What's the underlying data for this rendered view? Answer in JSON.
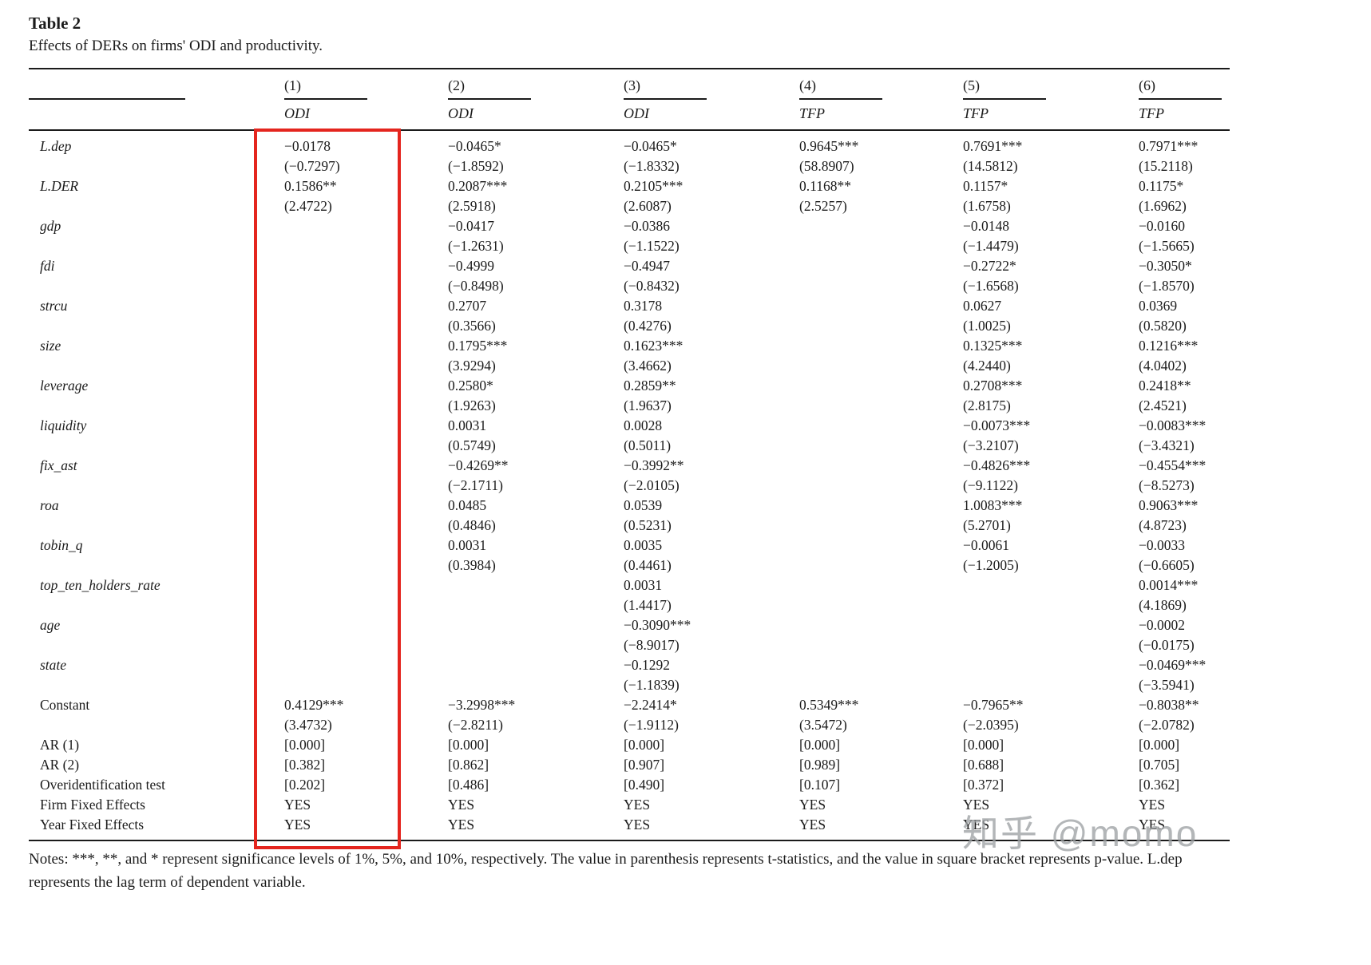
{
  "header": {
    "label": "Table 2",
    "caption": "Effects of DERs on firms' ODI and productivity."
  },
  "table": {
    "col_numbers": [
      "(1)",
      "(2)",
      "(3)",
      "(4)",
      "(5)",
      "(6)"
    ],
    "col_heads": [
      "ODI",
      "ODI",
      "ODI",
      "TFP",
      "TFP",
      "TFP"
    ],
    "var_rows": [
      {
        "label": "L.dep",
        "italic": true,
        "coef": [
          "−0.0178",
          "−0.0465*",
          "−0.0465*",
          "0.9645***",
          "0.7691***",
          "0.7971***"
        ],
        "t": [
          "(−0.7297)",
          "(−1.8592)",
          "(−1.8332)",
          "(58.8907)",
          "(14.5812)",
          "(15.2118)"
        ]
      },
      {
        "label": "L.DER",
        "italic": true,
        "coef": [
          "0.1586**",
          "0.2087***",
          "0.2105***",
          "0.1168**",
          "0.1157*",
          "0.1175*"
        ],
        "t": [
          "(2.4722)",
          "(2.5918)",
          "(2.6087)",
          "(2.5257)",
          "(1.6758)",
          "(1.6962)"
        ]
      },
      {
        "label": "gdp",
        "italic": true,
        "coef": [
          "",
          "−0.0417",
          "−0.0386",
          "",
          "−0.0148",
          "−0.0160"
        ],
        "t": [
          "",
          "(−1.2631)",
          "(−1.1522)",
          "",
          "(−1.4479)",
          "(−1.5665)"
        ]
      },
      {
        "label": "fdi",
        "italic": true,
        "coef": [
          "",
          "−0.4999",
          "−0.4947",
          "",
          "−0.2722*",
          "−0.3050*"
        ],
        "t": [
          "",
          "(−0.8498)",
          "(−0.8432)",
          "",
          "(−1.6568)",
          "(−1.8570)"
        ]
      },
      {
        "label": "strcu",
        "italic": true,
        "coef": [
          "",
          "0.2707",
          "0.3178",
          "",
          "0.0627",
          "0.0369"
        ],
        "t": [
          "",
          "(0.3566)",
          "(0.4276)",
          "",
          "(1.0025)",
          "(0.5820)"
        ]
      },
      {
        "label": "size",
        "italic": true,
        "coef": [
          "",
          "0.1795***",
          "0.1623***",
          "",
          "0.1325***",
          "0.1216***"
        ],
        "t": [
          "",
          "(3.9294)",
          "(3.4662)",
          "",
          "(4.2440)",
          "(4.0402)"
        ]
      },
      {
        "label": "leverage",
        "italic": true,
        "coef": [
          "",
          "0.2580*",
          "0.2859**",
          "",
          "0.2708***",
          "0.2418**"
        ],
        "t": [
          "",
          "(1.9263)",
          "(1.9637)",
          "",
          "(2.8175)",
          "(2.4521)"
        ]
      },
      {
        "label": "liquidity",
        "italic": true,
        "coef": [
          "",
          "0.0031",
          "0.0028",
          "",
          "−0.0073***",
          "−0.0083***"
        ],
        "t": [
          "",
          "(0.5749)",
          "(0.5011)",
          "",
          "(−3.2107)",
          "(−3.4321)"
        ]
      },
      {
        "label": "fix_ast",
        "italic": true,
        "coef": [
          "",
          "−0.4269**",
          "−0.3992**",
          "",
          "−0.4826***",
          "−0.4554***"
        ],
        "t": [
          "",
          "(−2.1711)",
          "(−2.0105)",
          "",
          "(−9.1122)",
          "(−8.5273)"
        ]
      },
      {
        "label": "roa",
        "italic": true,
        "coef": [
          "",
          "0.0485",
          "0.0539",
          "",
          "1.0083***",
          "0.9063***"
        ],
        "t": [
          "",
          "(0.4846)",
          "(0.5231)",
          "",
          "(5.2701)",
          "(4.8723)"
        ]
      },
      {
        "label": "tobin_q",
        "italic": true,
        "coef": [
          "",
          "0.0031",
          "0.0035",
          "",
          "−0.0061",
          "−0.0033"
        ],
        "t": [
          "",
          "(0.3984)",
          "(0.4461)",
          "",
          "(−1.2005)",
          "(−0.6605)"
        ]
      },
      {
        "label": "top_ten_holders_rate",
        "italic": true,
        "coef": [
          "",
          "",
          "0.0031",
          "",
          "",
          "0.0014***"
        ],
        "t": [
          "",
          "",
          "(1.4417)",
          "",
          "",
          "(4.1869)"
        ]
      },
      {
        "label": "age",
        "italic": true,
        "coef": [
          "",
          "",
          "−0.3090***",
          "",
          "",
          "−0.0002"
        ],
        "t": [
          "",
          "",
          "(−8.9017)",
          "",
          "",
          "(−0.0175)"
        ]
      },
      {
        "label": "state",
        "italic": true,
        "coef": [
          "",
          "",
          "−0.1292",
          "",
          "",
          "−0.0469***"
        ],
        "t": [
          "",
          "",
          "(−1.1839)",
          "",
          "",
          "(−3.5941)"
        ]
      },
      {
        "label": "Constant",
        "italic": false,
        "coef": [
          "0.4129***",
          "−3.2998***",
          "−2.2414*",
          "0.5349***",
          "−0.7965**",
          "−0.8038**"
        ],
        "t": [
          "(3.4732)",
          "(−2.8211)",
          "(−1.9112)",
          "(3.5472)",
          "(−2.0395)",
          "(−2.0782)"
        ]
      }
    ],
    "bottom_rows": [
      {
        "label": "AR (1)",
        "values": [
          "[0.000]",
          "[0.000]",
          "[0.000]",
          "[0.000]",
          "[0.000]",
          "[0.000]"
        ]
      },
      {
        "label": "AR (2)",
        "values": [
          "[0.382]",
          "[0.862]",
          "[0.907]",
          "[0.989]",
          "[0.688]",
          "[0.705]"
        ]
      },
      {
        "label": "Overidentification test",
        "values": [
          "[0.202]",
          "[0.486]",
          "[0.490]",
          "[0.107]",
          "[0.372]",
          "[0.362]"
        ]
      },
      {
        "label": "Firm Fixed Effects",
        "values": [
          "YES",
          "YES",
          "YES",
          "YES",
          "YES",
          "YES"
        ]
      },
      {
        "label": "Year Fixed Effects",
        "values": [
          "YES",
          "YES",
          "YES",
          "YES",
          "YES",
          "YES"
        ]
      }
    ]
  },
  "notes": "Notes: ***, **, and * represent significance levels of 1%, 5%, and 10%, respectively. The value in parenthesis represents t-statistics, and the value in square bracket represents p-value. L.dep represents the lag term of dependent variable.",
  "watermark": "知乎 @momo",
  "highlight_color": "#e4251e"
}
